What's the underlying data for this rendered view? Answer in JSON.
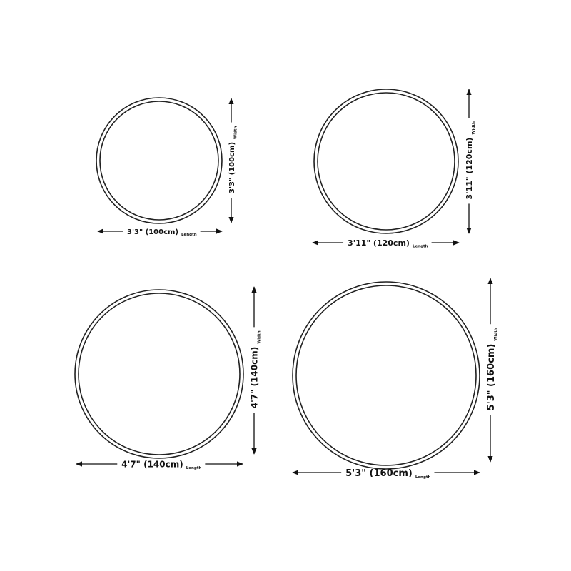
{
  "sizes": [
    {
      "length": "3'3\" (100cm)",
      "width": "3'3\" (100cm)",
      "length_tag": "Length",
      "width_tag": "Width"
    },
    {
      "length": "3'11\" (120cm)",
      "width": "3'11\" (120cm)",
      "length_tag": "Length",
      "width_tag": "Width"
    },
    {
      "length": "4'7\" (140cm)",
      "width": "4'7\" (140cm)",
      "length_tag": "Length",
      "width_tag": "Width"
    },
    {
      "length": "5'3\" (160cm)",
      "width": "5'3\" (160cm)",
      "length_tag": "Length",
      "width_tag": "Width"
    }
  ],
  "colors": {
    "line": "#222222",
    "background": "#ffffff"
  }
}
